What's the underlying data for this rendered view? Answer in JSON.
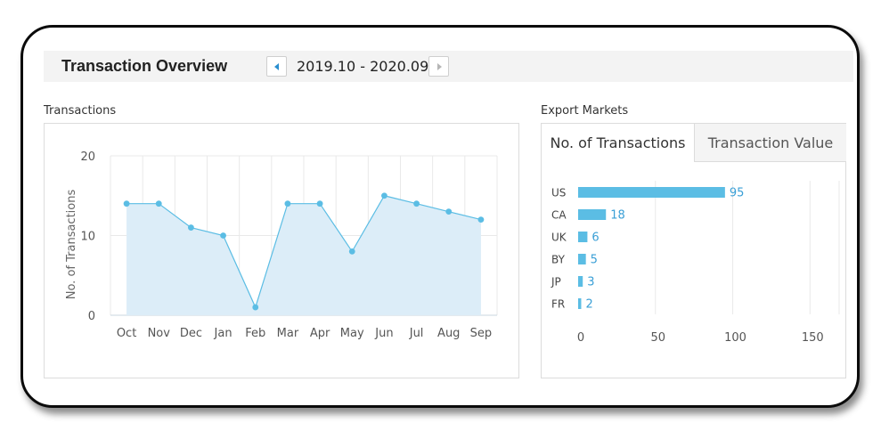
{
  "header": {
    "title": "Transaction Overview",
    "date_range": "2019.10 - 2020.09"
  },
  "sections": {
    "transactions_label": "Transactions",
    "export_label": "Export Markets"
  },
  "tabs": [
    {
      "label": "No. of Transactions",
      "active": true
    },
    {
      "label": "Transaction Value",
      "active": false
    }
  ],
  "colors": {
    "line": "#5bbde4",
    "area": "#dcedf8",
    "bar": "#5bbde4",
    "grid": "#e9e9e9",
    "value_label": "#3a9fd6"
  },
  "chart_data": [
    {
      "type": "area",
      "categories": [
        "Oct",
        "Nov",
        "Dec",
        "Jan",
        "Feb",
        "Mar",
        "Apr",
        "May",
        "Jun",
        "Jul",
        "Aug",
        "Sep"
      ],
      "series": [
        {
          "values": [
            14,
            14,
            11,
            10,
            1,
            14,
            14,
            8,
            15,
            14,
            13,
            12
          ]
        }
      ],
      "ylabel": "No. of Transactions",
      "ylim": [
        0,
        20
      ],
      "yticks": [
        0,
        10,
        20
      ],
      "grid": true
    },
    {
      "type": "bar",
      "orientation": "horizontal",
      "categories": [
        "US",
        "CA",
        "UK",
        "BY",
        "JP",
        "FR"
      ],
      "values": [
        95,
        18,
        6,
        5,
        3,
        2
      ],
      "xlim": [
        0,
        170
      ],
      "xticks": [
        0,
        50,
        100,
        150
      ],
      "grid": true
    }
  ]
}
